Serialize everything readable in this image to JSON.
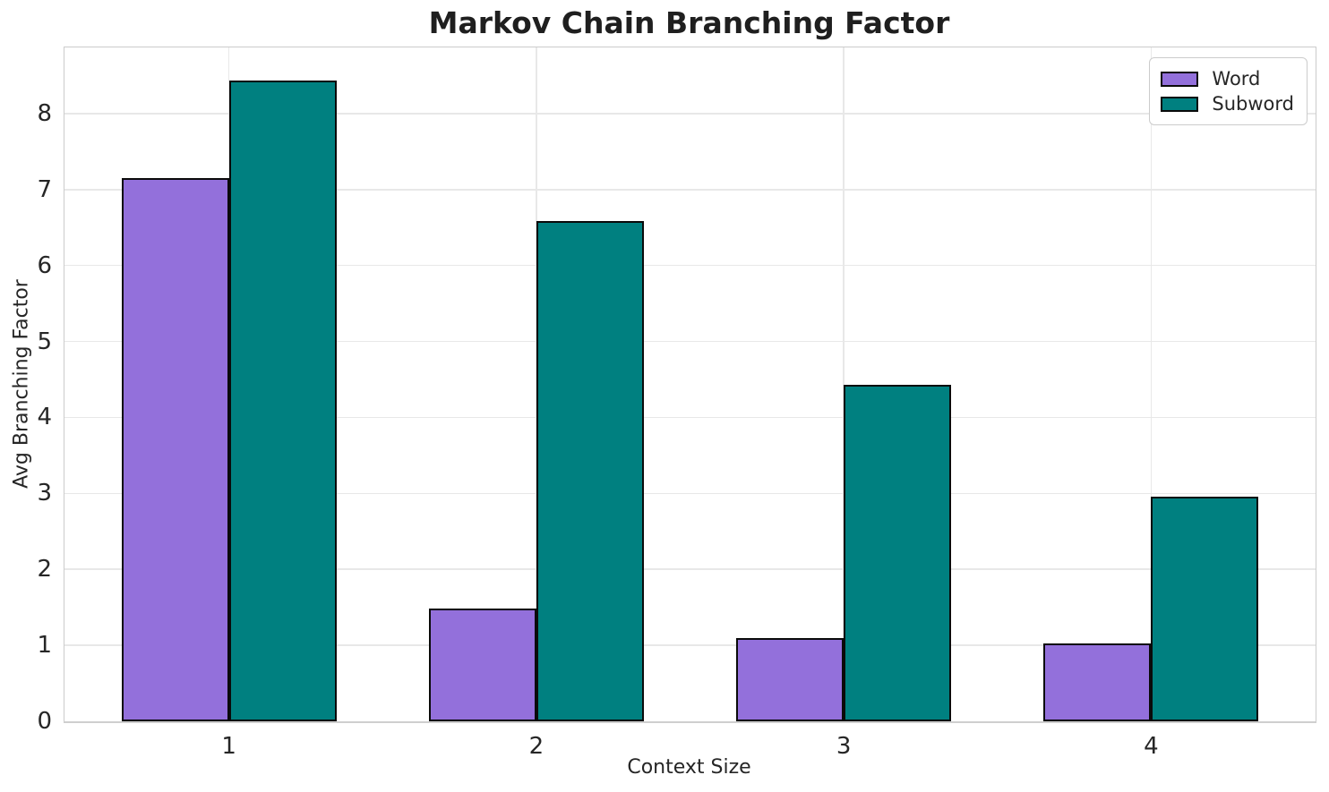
{
  "chart_data": {
    "type": "bar",
    "title": "Markov Chain Branching Factor",
    "xlabel": "Context Size",
    "ylabel": "Avg Branching Factor",
    "categories": [
      "1",
      "2",
      "3",
      "4"
    ],
    "series": [
      {
        "name": "Word",
        "color": "#9370DB",
        "values": [
          7.15,
          1.49,
          1.09,
          1.02
        ]
      },
      {
        "name": "Subword",
        "color": "#008080",
        "values": [
          8.43,
          6.59,
          4.43,
          2.96
        ]
      }
    ],
    "edge_color": "#0a0a0a",
    "yticks": [
      0,
      1,
      2,
      3,
      4,
      5,
      6,
      7,
      8
    ],
    "ylim": [
      0,
      8.87
    ],
    "xlim": [
      -0.535,
      3.535
    ],
    "bar_width": 0.35,
    "bar_offsets": [
      -0.35,
      0
    ],
    "grid": true,
    "legend_position": "upper right"
  }
}
